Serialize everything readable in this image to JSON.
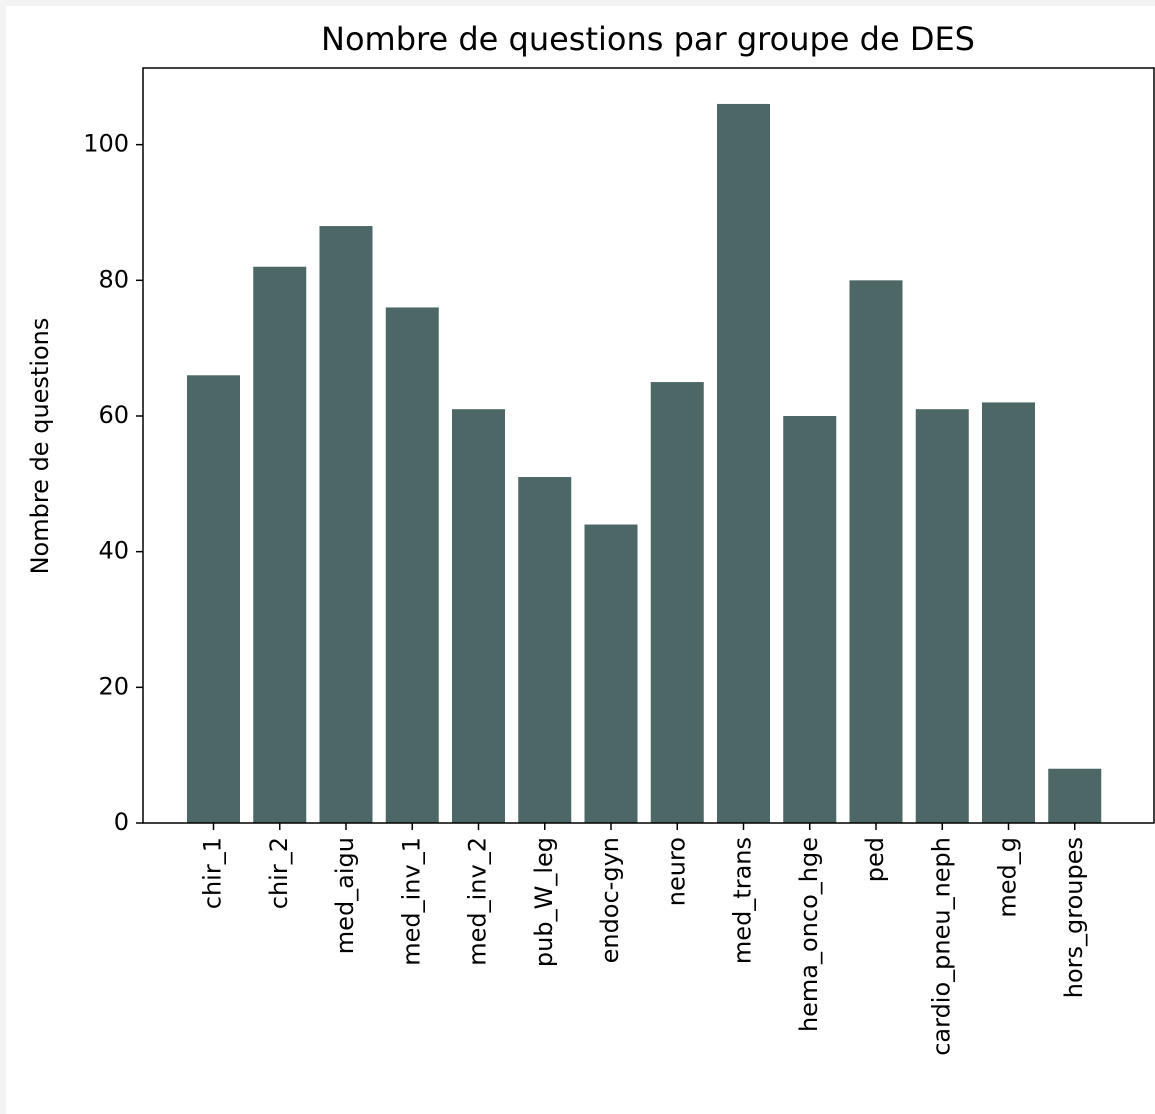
{
  "chart_data": {
    "type": "bar",
    "title": "Nombre de questions par groupe de DES",
    "xlabel": "",
    "ylabel": "Nombre de questions",
    "categories": [
      "chir_1",
      "chir_2",
      "med_aigu",
      "med_inv_1",
      "med_inv_2",
      "pub_W_leg",
      "endoc-gyn",
      "neuro",
      "med_trans",
      "hema_onco_hge",
      "ped",
      "cardio_pneu_neph",
      "med_g",
      "hors_groupes"
    ],
    "values": [
      66,
      82,
      88,
      76,
      61,
      51,
      44,
      65,
      106,
      60,
      80,
      61,
      62,
      8
    ],
    "ylim": [
      0,
      111.3
    ],
    "yticks": [
      0,
      20,
      40,
      60,
      80,
      100
    ],
    "bar_color": "#4d6666",
    "grid": false,
    "legend": "none"
  }
}
